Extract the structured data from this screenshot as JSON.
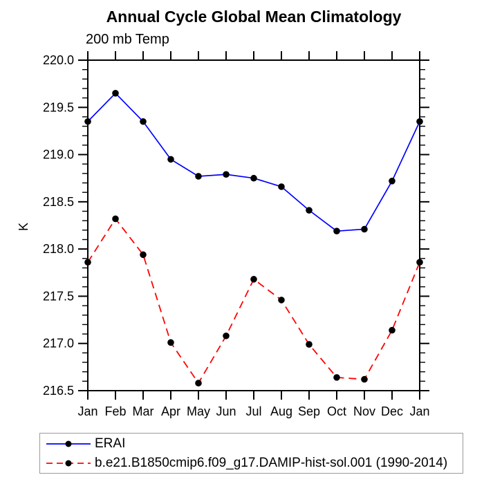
{
  "title": "Annual Cycle Global Mean Climatology",
  "subtitle": "200 mb Temp",
  "chart_data": {
    "type": "line",
    "categories": [
      "Jan",
      "Feb",
      "Mar",
      "Apr",
      "May",
      "Jun",
      "Jul",
      "Aug",
      "Sep",
      "Oct",
      "Nov",
      "Dec",
      "Jan"
    ],
    "series": [
      {
        "name": "ERAI",
        "color": "#0000ff",
        "line_style": "solid",
        "marker": "filled-circle",
        "marker_color": "#000000",
        "values": [
          219.35,
          219.65,
          219.35,
          218.95,
          218.77,
          218.79,
          218.75,
          218.66,
          218.41,
          218.19,
          218.21,
          218.72,
          219.35
        ]
      },
      {
        "name": "b.e21.B1850cmip6.f09_g17.DAMIP-hist-sol.001 (1990-2014)",
        "color": "#ff0000",
        "line_style": "dashed",
        "marker": "filled-circle",
        "marker_color": "#000000",
        "values": [
          217.86,
          218.32,
          217.94,
          217.01,
          216.58,
          217.08,
          217.68,
          217.46,
          216.99,
          216.64,
          216.62,
          217.14,
          217.86
        ]
      }
    ],
    "xlabel": "",
    "ylabel": "K",
    "ylim": [
      216.5,
      220.0
    ],
    "ytick_labels": [
      "220.0",
      "219.5",
      "219.0",
      "218.5",
      "218.0",
      "217.5",
      "217.0",
      "216.5"
    ],
    "ytick_step": 0.5,
    "yminor_step": 0.1,
    "grid": false,
    "axis_color": "#000000",
    "legend_position": "bottom-left-box"
  },
  "legend": {
    "entries": [
      {
        "label": "ERAI"
      },
      {
        "label": "b.e21.B1850cmip6.f09_g17.DAMIP-hist-sol.001 (1990-2014)"
      }
    ]
  }
}
